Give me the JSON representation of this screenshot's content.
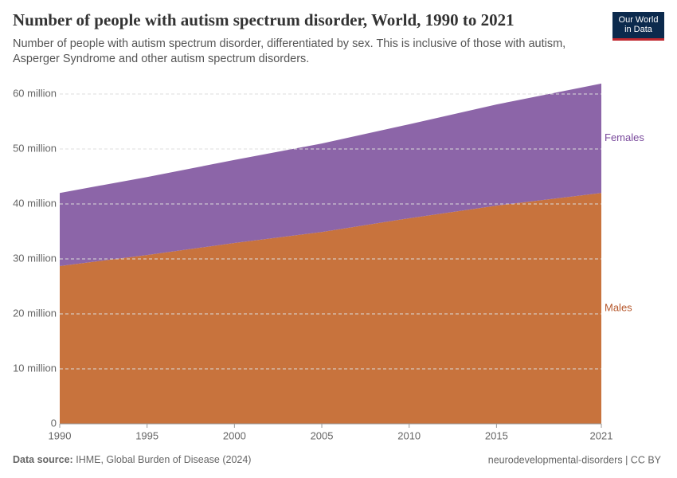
{
  "chart_data": {
    "type": "stacked-area",
    "title": "Number of people with autism spectrum disorder, World, 1990 to 2021",
    "subtitle": "Number of people with autism spectrum disorder, differentiated by sex. This is inclusive of those with autism, Asperger Syndrome and other autism spectrum disorders.",
    "logo": "Our World in Data",
    "source_label": "Data source:",
    "source": "IHME, Global Burden of Disease (2024)",
    "footer_right": "neurodevelopmental-disorders | CC BY",
    "x": [
      1990,
      1995,
      2000,
      2005,
      2010,
      2015,
      2021
    ],
    "series": [
      {
        "name": "Males",
        "color": "#c8733d",
        "label_color": "#b5562a",
        "values": [
          28700000,
          30700000,
          32900000,
          34900000,
          37400000,
          39700000,
          42000000
        ]
      },
      {
        "name": "Females",
        "color": "#8c65a8",
        "label_color": "#7a4a9c",
        "values": [
          13300000,
          14200000,
          15100000,
          16100000,
          17100000,
          18400000,
          19900000
        ]
      }
    ],
    "xlim": [
      1990,
      2021
    ],
    "xticks": [
      1990,
      1995,
      2000,
      2005,
      2010,
      2015,
      2021
    ],
    "ylim": [
      0,
      60000000
    ],
    "yticks": [
      0,
      {
        "value": 10000000,
        "label": "10 million"
      },
      {
        "value": 20000000,
        "label": "20 million"
      },
      {
        "value": 30000000,
        "label": "30 million"
      },
      {
        "value": 40000000,
        "label": "40 million"
      },
      {
        "value": 50000000,
        "label": "50 million"
      },
      {
        "value": 60000000,
        "label": "60 million"
      }
    ],
    "grid": true
  }
}
